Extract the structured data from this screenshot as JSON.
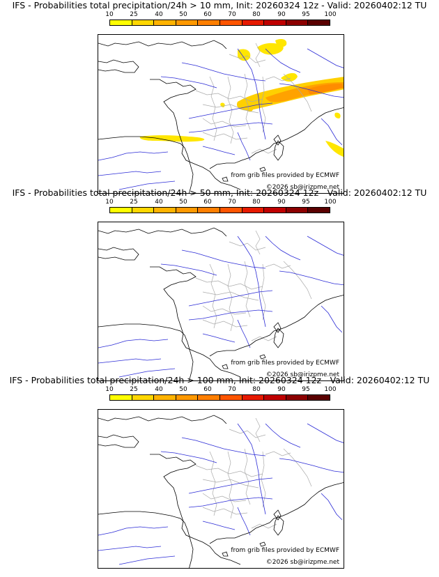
{
  "colorbar": {
    "ticks": [
      "10",
      "25",
      "40",
      "50",
      "60",
      "70",
      "80",
      "90",
      "95",
      "100"
    ],
    "colors": [
      "#ffff00",
      "#ffd700",
      "#ffb300",
      "#ff9900",
      "#ff7f00",
      "#ff5500",
      "#e61a00",
      "#bf0000",
      "#8c0000",
      "#5a0000"
    ]
  },
  "panels": [
    {
      "title": "IFS - Probabilities total precipitation/24h > 10 mm, Init: 20260324 12z - Valid: 20260402:12 TU",
      "source_credit": "from grib files provided by ECMWF",
      "copyright": "©2026 sb@irizpme.net"
    },
    {
      "title": "IFS - Probabilities total precipitation/24h > 50 mm, Init: 20260324 12z - Valid: 20260402:12 TU",
      "source_credit": "from grib files provided by ECMWF",
      "copyright": "©2026 sb@irizpme.net"
    },
    {
      "title": "IFS - Probabilities total precipitation/24h > 100 mm, Init: 20260324 12z - Valid: 20260402:12 TU",
      "source_credit": "from grib files provided by ECMWF",
      "copyright": "©2026 sb@irizpme.net"
    }
  ],
  "map": {
    "coastline_color": "#000000",
    "river_color": "#2b2bd6",
    "border_color": "#aaaaaa",
    "precip_panel_index": 0
  }
}
